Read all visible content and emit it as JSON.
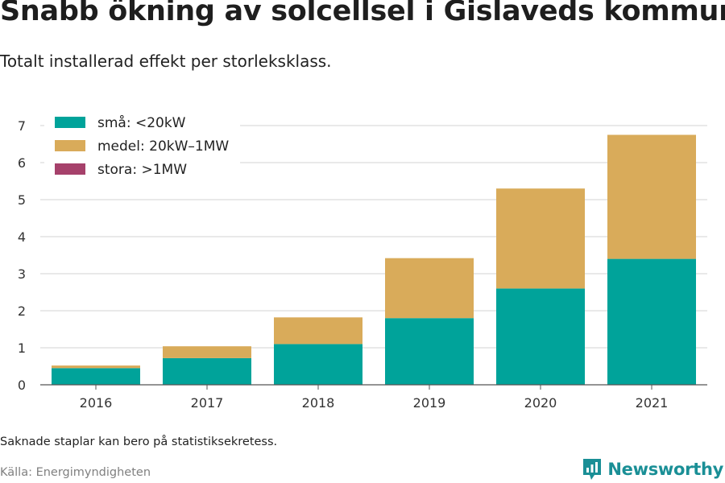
{
  "header": {
    "title": "Snabb ökning av solcellsel i Gislaveds kommun",
    "subtitle": "Totalt installerad effekt per storleksklass."
  },
  "footer": {
    "note": "Saknade staplar kan bero på statistiksekretess.",
    "source": "Källa: Energimyndigheten",
    "brand": "Newsworthy",
    "brand_icon": "newsworthy-logo-icon"
  },
  "chart_data": {
    "type": "bar",
    "stacked": true,
    "categories": [
      "2016",
      "2017",
      "2018",
      "2019",
      "2020",
      "2021"
    ],
    "series": [
      {
        "name": "små: <20kW",
        "color": "#00a39a",
        "values": [
          0.45,
          0.72,
          1.1,
          1.8,
          2.6,
          3.4
        ]
      },
      {
        "name": "medel: 20kW–1MW",
        "color": "#d9ab5a",
        "values": [
          0.07,
          0.32,
          0.72,
          1.62,
          2.7,
          3.35
        ]
      },
      {
        "name": "stora: >1MW",
        "color": "#a6416b",
        "values": [
          0,
          0,
          0,
          0,
          0,
          0
        ]
      }
    ],
    "ylim": [
      0,
      7
    ],
    "yticks": [
      "0",
      "1",
      "2",
      "3",
      "4",
      "5",
      "6",
      "7"
    ],
    "grid": true,
    "legend": "top-left",
    "title": "Snabb ökning av solcellsel i Gislaveds kommun",
    "xlabel": "",
    "ylabel": ""
  }
}
